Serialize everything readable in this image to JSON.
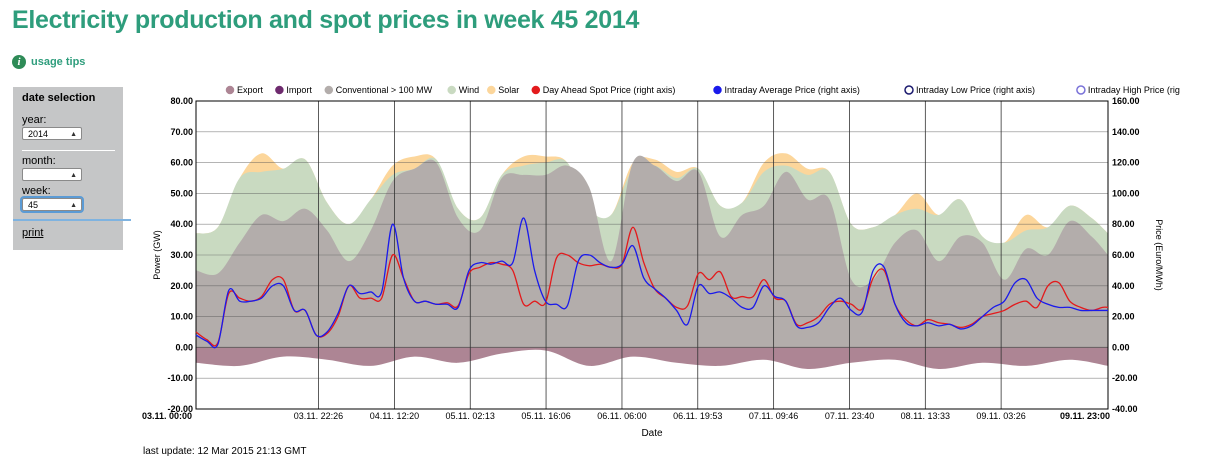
{
  "header": {
    "title": "Electricity production and spot prices in week 45 2014"
  },
  "tips": {
    "label": "usage tips",
    "icon": "info-icon"
  },
  "sidebar": {
    "heading": "date selection",
    "year_label": "year:",
    "year_value": "2014",
    "month_label": "month:",
    "month_value": "",
    "week_label": "week:",
    "week_value": "45",
    "print_label": "print"
  },
  "footer": {
    "last_update": "last update: 12 Mar 2015 21:13 GMT"
  },
  "colors": {
    "export": "#ad8594",
    "import": "#6e2a6e",
    "conventional": "#b3adab",
    "wind": "#c9dac1",
    "solar": "#fcd69b",
    "day_ahead": "#e31a1c",
    "intraday_avg": "#1a1aeb",
    "intraday_low": "#1b1a6e",
    "intraday_high": "#7a72d8"
  },
  "chart_data": {
    "type": "area",
    "xlabel": "Date",
    "ylabel": "Power (GW)",
    "ylabel_right": "Price (Euro/MWh)",
    "ylim": [
      -20,
      80
    ],
    "ylim_right": [
      -40,
      160
    ],
    "yticks": [
      "80.00",
      "70.00",
      "60.00",
      "50.00",
      "40.00",
      "30.00",
      "20.00",
      "10.00",
      "0.00",
      "-10.00",
      "-20.00"
    ],
    "yticks_right": [
      "160.00",
      "140.00",
      "120.00",
      "100.00",
      "80.00",
      "60.00",
      "40.00",
      "20.00",
      "0.00",
      "-20.00",
      "-40.00"
    ],
    "xticks": [
      "03.11. 00:00",
      "03.11. 22:26",
      "04.11. 12:20",
      "05.11. 02:13",
      "05.11. 16:06",
      "06.11. 06:00",
      "06.11. 19:53",
      "07.11. 09:46",
      "07.11. 23:40",
      "08.11. 13:33",
      "09.11. 03:26",
      "09.11. 23:00"
    ],
    "xticks_hours": [
      0,
      22.43,
      36.33,
      50.22,
      64.1,
      78,
      91.88,
      105.77,
      119.67,
      133.55,
      147.43,
      167
    ],
    "x_hours_range": [
      0,
      167
    ],
    "legend": [
      "Export",
      "Import",
      "Conventional > 100 MW",
      "Wind",
      "Solar",
      "Day Ahead Spot Price (right axis)",
      "Intraday Average Price (right axis)",
      "Intraday Low Price (right axis)",
      "Intraday High Price (right axis)"
    ],
    "grid": true,
    "legend_position": "top",
    "series": [
      {
        "name": "Conventional > 100 MW",
        "unit": "GW",
        "x_hours": [
          0,
          4,
          8,
          12,
          16,
          20,
          24,
          28,
          32,
          36,
          40,
          44,
          48,
          52,
          56,
          60,
          64,
          68,
          72,
          76,
          80,
          84,
          88,
          92,
          96,
          100,
          104,
          108,
          112,
          116,
          120,
          124,
          128,
          132,
          136,
          140,
          144,
          148,
          152,
          156,
          160,
          164,
          167
        ],
        "values": [
          25,
          24,
          34,
          43,
          41,
          45,
          38,
          28,
          38,
          54,
          58,
          60,
          42,
          38,
          55,
          56,
          56,
          59,
          52,
          28,
          60,
          59,
          54,
          57,
          36,
          43,
          46,
          57,
          48,
          48,
          22,
          22,
          34,
          38,
          28,
          36,
          34,
          22,
          32,
          30,
          41,
          36,
          30
        ]
      },
      {
        "name": "Wind",
        "unit": "GW",
        "x_hours": [
          0,
          4,
          8,
          12,
          16,
          20,
          24,
          28,
          32,
          36,
          40,
          44,
          48,
          52,
          56,
          60,
          64,
          68,
          72,
          76,
          80,
          84,
          88,
          92,
          96,
          100,
          104,
          108,
          112,
          116,
          120,
          124,
          128,
          132,
          136,
          140,
          144,
          148,
          152,
          156,
          160,
          164,
          167
        ],
        "values": [
          37,
          39,
          55,
          57,
          58,
          61,
          47,
          40,
          48,
          56,
          58,
          61,
          45,
          42,
          56,
          59,
          60,
          60,
          45,
          43,
          58,
          59,
          55,
          58,
          46,
          47,
          57,
          59,
          56,
          57,
          40,
          39,
          43,
          45,
          43,
          48,
          36,
          34,
          38,
          39,
          46,
          42,
          37
        ]
      },
      {
        "name": "Solar",
        "unit": "GW",
        "x_hours": [
          0,
          4,
          8,
          12,
          16,
          20,
          24,
          28,
          32,
          36,
          40,
          44,
          48,
          52,
          56,
          60,
          64,
          68,
          72,
          76,
          80,
          84,
          88,
          92,
          96,
          100,
          104,
          108,
          112,
          116,
          120,
          124,
          128,
          132,
          136,
          140,
          144,
          148,
          152,
          156,
          160,
          164,
          167
        ],
        "values": [
          37,
          39,
          55,
          63,
          58,
          61,
          47,
          40,
          48,
          59,
          62,
          61,
          45,
          42,
          56,
          62,
          62,
          60,
          45,
          43,
          60,
          61,
          57,
          58,
          46,
          47,
          60,
          63,
          58,
          57,
          40,
          39,
          43,
          50,
          43,
          48,
          36,
          34,
          43,
          39,
          46,
          42,
          37
        ]
      },
      {
        "name": "Export",
        "unit": "GW",
        "x_hours": [
          0,
          8,
          16,
          24,
          32,
          40,
          48,
          56,
          64,
          72,
          80,
          88,
          96,
          104,
          112,
          120,
          128,
          136,
          144,
          152,
          160,
          167
        ],
        "values": [
          -5,
          -6,
          -3,
          -4,
          -6,
          -3,
          -5,
          -2,
          -1,
          -6,
          -3,
          -5,
          -6,
          -4,
          -7,
          -5,
          -4,
          -7,
          -5,
          -6,
          -4,
          -6
        ]
      },
      {
        "name": "Day Ahead Spot Price (right axis)",
        "unit": "Euro/MWh",
        "x_hours": [
          0,
          2,
          4,
          6,
          8,
          10,
          12,
          14,
          16,
          18,
          20,
          22,
          24,
          26,
          28,
          30,
          32,
          34,
          36,
          38,
          40,
          42,
          44,
          46,
          48,
          50,
          52,
          54,
          56,
          58,
          60,
          62,
          64,
          66,
          68,
          70,
          72,
          74,
          76,
          78,
          80,
          82,
          84,
          86,
          88,
          90,
          92,
          94,
          96,
          98,
          100,
          102,
          104,
          106,
          108,
          110,
          112,
          114,
          116,
          118,
          120,
          122,
          124,
          126,
          128,
          130,
          132,
          134,
          136,
          138,
          140,
          142,
          144,
          146,
          148,
          150,
          152,
          154,
          156,
          158,
          160,
          162,
          164,
          166,
          167
        ],
        "values": [
          10,
          5,
          3,
          35,
          32,
          30,
          33,
          44,
          44,
          24,
          24,
          8,
          9,
          20,
          40,
          32,
          32,
          32,
          60,
          45,
          30,
          30,
          28,
          29,
          27,
          48,
          52,
          55,
          54,
          50,
          28,
          30,
          29,
          58,
          60,
          55,
          53,
          54,
          52,
          54,
          78,
          55,
          38,
          32,
          26,
          27,
          48,
          44,
          49,
          33,
          33,
          33,
          44,
          32,
          30,
          15,
          16,
          20,
          28,
          30,
          28,
          25,
          45,
          50,
          28,
          18,
          14,
          18,
          16,
          15,
          13,
          15,
          20,
          22,
          24,
          28,
          30,
          26,
          40,
          42,
          30,
          26,
          24,
          26,
          26
        ]
      },
      {
        "name": "Intraday Average Price (right axis)",
        "unit": "Euro/MWh",
        "x_hours": [
          0,
          2,
          4,
          6,
          8,
          10,
          12,
          14,
          16,
          18,
          20,
          22,
          24,
          26,
          28,
          30,
          32,
          34,
          36,
          38,
          40,
          42,
          44,
          46,
          48,
          50,
          52,
          54,
          56,
          58,
          60,
          62,
          64,
          66,
          68,
          70,
          72,
          74,
          76,
          78,
          80,
          82,
          84,
          86,
          88,
          90,
          92,
          94,
          96,
          98,
          100,
          102,
          104,
          106,
          108,
          110,
          112,
          114,
          116,
          118,
          120,
          122,
          124,
          126,
          128,
          130,
          132,
          134,
          136,
          138,
          140,
          142,
          144,
          146,
          148,
          150,
          152,
          154,
          156,
          158,
          160,
          162,
          164,
          166,
          167
        ],
        "values": [
          8,
          4,
          2,
          37,
          30,
          30,
          32,
          40,
          40,
          24,
          24,
          8,
          10,
          22,
          40,
          35,
          36,
          36,
          80,
          45,
          30,
          30,
          28,
          28,
          26,
          50,
          55,
          54,
          56,
          55,
          84,
          50,
          30,
          28,
          27,
          56,
          60,
          55,
          52,
          54,
          66,
          45,
          38,
          32,
          24,
          15,
          40,
          35,
          36,
          32,
          26,
          26,
          40,
          33,
          30,
          14,
          13,
          16,
          26,
          32,
          24,
          23,
          50,
          52,
          28,
          16,
          14,
          16,
          14,
          15,
          12,
          14,
          20,
          26,
          30,
          42,
          44,
          32,
          28,
          26,
          26,
          24,
          24,
          24,
          24
        ]
      }
    ]
  }
}
